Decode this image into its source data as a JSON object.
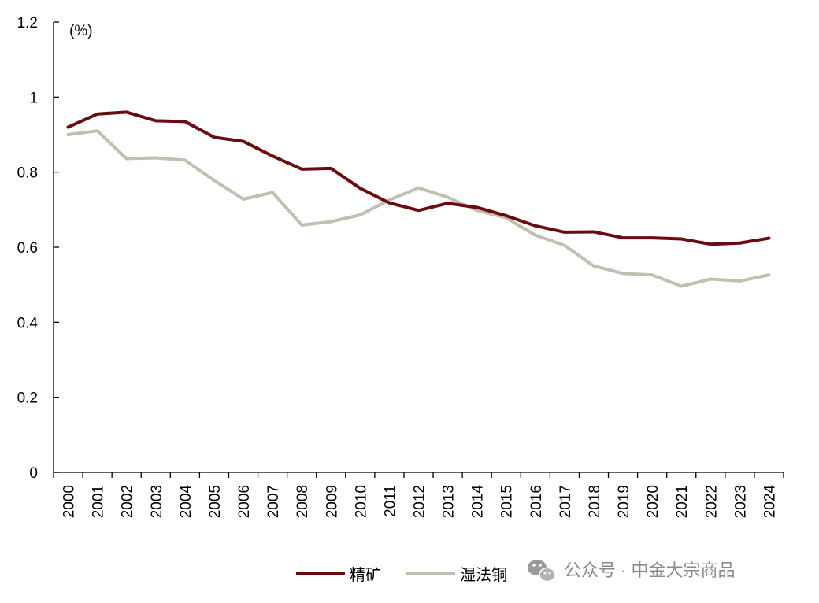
{
  "chart_data": {
    "type": "line",
    "title": "",
    "xlabel": "",
    "ylabel": "(%)",
    "unit_label": "(%)",
    "ylim": [
      0,
      1.2
    ],
    "yticks": [
      "0",
      "0.2",
      "0.4",
      "0.6",
      "0.8",
      "1",
      "1.2"
    ],
    "ytick_values": [
      0,
      0.2,
      0.4,
      0.6,
      0.8,
      1.0,
      1.2
    ],
    "grid": false,
    "legend_position": "bottom-right",
    "categories": [
      "2000",
      "2001",
      "2002",
      "2003",
      "2004",
      "2005",
      "2006",
      "2007",
      "2008",
      "2009",
      "2010",
      "2011",
      "2012",
      "2013",
      "2014",
      "2015",
      "2016",
      "2017",
      "2018",
      "2019",
      "2020",
      "2021",
      "2022",
      "2023",
      "2024"
    ],
    "series": [
      {
        "name": "精矿",
        "color": "#6b0a0f",
        "values": [
          0.92,
          0.955,
          0.96,
          0.937,
          0.935,
          0.893,
          0.882,
          0.843,
          0.808,
          0.81,
          0.757,
          0.718,
          0.698,
          0.717,
          0.706,
          0.684,
          0.657,
          0.64,
          0.641,
          0.625,
          0.625,
          0.622,
          0.608,
          0.611,
          0.624
        ]
      },
      {
        "name": "湿法铜",
        "color": "#c2bfb0",
        "values": [
          0.9,
          0.91,
          0.836,
          0.838,
          0.832,
          0.778,
          0.728,
          0.746,
          0.659,
          0.668,
          0.686,
          0.726,
          0.758,
          0.733,
          0.698,
          0.678,
          0.632,
          0.605,
          0.55,
          0.53,
          0.526,
          0.496,
          0.515,
          0.51,
          0.526
        ]
      }
    ]
  },
  "watermark": {
    "icon": "wechat-icon",
    "text": "公众号 · 中金大宗商品"
  }
}
